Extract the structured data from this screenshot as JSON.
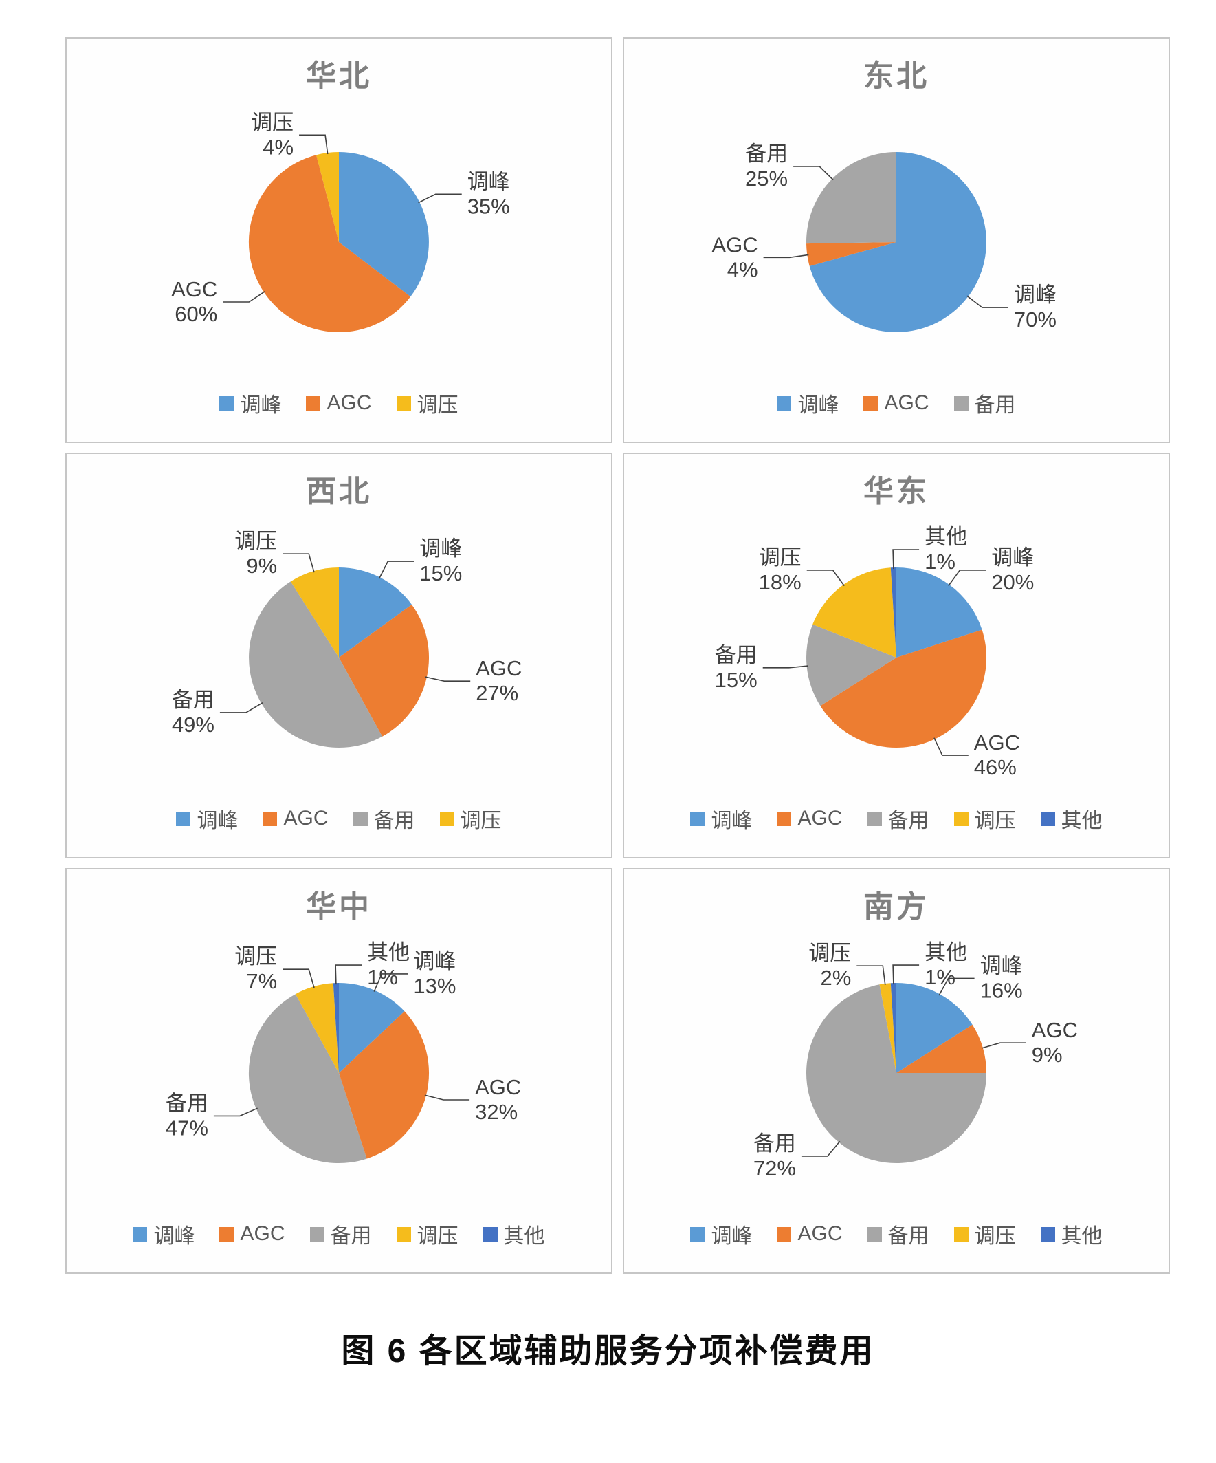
{
  "figure": {
    "caption": "图 6  各区域辅助服务分项补偿费用"
  },
  "palette": {
    "调峰": "#5B9BD5",
    "AGC": "#ED7D31",
    "备用": "#A6A6A6",
    "调压": "#F5BC1C",
    "其他": "#4472C4"
  },
  "chart_data": [
    {
      "type": "pie",
      "title": "华北",
      "labels": [
        "调峰",
        "AGC",
        "调压"
      ],
      "values": [
        35,
        60,
        4
      ],
      "unit": "%",
      "start_angle": "top",
      "direction": "clockwise",
      "legend": [
        "调峰",
        "AGC",
        "调压"
      ],
      "legend_position": "bottom"
    },
    {
      "type": "pie",
      "title": "东北",
      "labels": [
        "调峰",
        "AGC",
        "备用"
      ],
      "values": [
        70,
        4,
        25
      ],
      "unit": "%",
      "start_angle": "top",
      "direction": "clockwise",
      "legend": [
        "调峰",
        "AGC",
        "备用"
      ],
      "legend_position": "bottom"
    },
    {
      "type": "pie",
      "title": "西北",
      "labels": [
        "调峰",
        "AGC",
        "备用",
        "调压"
      ],
      "values": [
        15,
        27,
        49,
        9
      ],
      "unit": "%",
      "start_angle": "top",
      "direction": "clockwise",
      "legend": [
        "调峰",
        "AGC",
        "备用",
        "调压"
      ],
      "legend_position": "bottom"
    },
    {
      "type": "pie",
      "title": "华东",
      "labels": [
        "调峰",
        "AGC",
        "备用",
        "调压",
        "其他"
      ],
      "values": [
        20,
        46,
        15,
        18,
        1
      ],
      "unit": "%",
      "start_angle": "top",
      "direction": "clockwise",
      "legend": [
        "调峰",
        "AGC",
        "备用",
        "调压",
        "其他"
      ],
      "legend_position": "bottom"
    },
    {
      "type": "pie",
      "title": "华中",
      "labels": [
        "调峰",
        "AGC",
        "备用",
        "调压",
        "其他"
      ],
      "values": [
        13,
        32,
        47,
        7,
        1
      ],
      "unit": "%",
      "start_angle": "top",
      "direction": "clockwise",
      "legend": [
        "调峰",
        "AGC",
        "备用",
        "调压",
        "其他"
      ],
      "legend_position": "bottom"
    },
    {
      "type": "pie",
      "title": "南方",
      "labels": [
        "调峰",
        "AGC",
        "备用",
        "调压",
        "其他"
      ],
      "values": [
        16,
        9,
        72,
        2,
        1
      ],
      "unit": "%",
      "start_angle": "top",
      "direction": "clockwise",
      "legend": [
        "调峰",
        "AGC",
        "备用",
        "调压",
        "其他"
      ],
      "legend_position": "bottom"
    }
  ]
}
